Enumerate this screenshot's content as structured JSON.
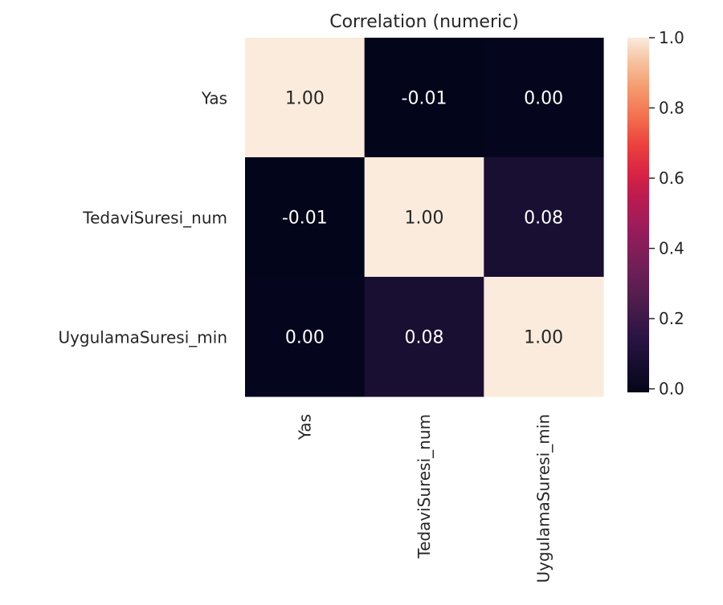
{
  "chart_data": {
    "type": "heatmap",
    "title": "Correlation (numeric)",
    "rows": [
      "Yas",
      "TedaviSuresi_num",
      "UygulamaSuresi_min"
    ],
    "columns": [
      "Yas",
      "TedaviSuresi_num",
      "UygulamaSuresi_min"
    ],
    "values": [
      [
        1.0,
        -0.01,
        0.0
      ],
      [
        -0.01,
        1.0,
        0.08
      ],
      [
        0.0,
        0.08,
        1.0
      ]
    ],
    "cell_labels": [
      [
        "1.00",
        "-0.01",
        "0.00"
      ],
      [
        "-0.01",
        "1.00",
        "0.08"
      ],
      [
        "0.00",
        "0.08",
        "1.00"
      ]
    ],
    "colorbar": {
      "min": -0.01,
      "max": 1.0,
      "ticks": [
        0.0,
        0.2,
        0.4,
        0.6,
        0.8,
        1.0
      ],
      "tick_labels": [
        "0.0",
        "0.2",
        "0.4",
        "0.6",
        "0.8",
        "1.0"
      ],
      "colormap": "rocket"
    },
    "xlabel": "",
    "ylabel": "",
    "grid": false
  }
}
